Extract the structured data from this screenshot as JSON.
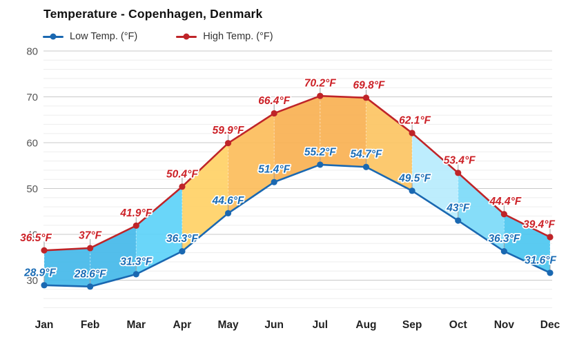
{
  "chart_data": {
    "type": "line",
    "title": "Temperature - Copenhagen, Denmark",
    "categories": [
      "Jan",
      "Feb",
      "Mar",
      "Apr",
      "May",
      "Jun",
      "Jul",
      "Aug",
      "Sep",
      "Oct",
      "Nov",
      "Dec"
    ],
    "series": [
      {
        "name": "Low Temp. (°F)",
        "color": "#1a68b1",
        "label_color": "#1a6cb5",
        "values": [
          28.9,
          28.6,
          31.3,
          36.3,
          44.6,
          51.4,
          55.2,
          54.7,
          49.5,
          43,
          36.3,
          31.6
        ],
        "labels": [
          "28.9°F",
          "28.6°F",
          "31.3°F",
          "36.3°F",
          "44.6°F",
          "51.4°F",
          "55.2°F",
          "54.7°F",
          "49.5°F",
          "43°F",
          "36.3°F",
          "31.6°F"
        ]
      },
      {
        "name": "High Temp. (°F)",
        "color": "#bf2428",
        "label_color": "#cc2127",
        "values": [
          36.5,
          37,
          41.9,
          50.4,
          59.9,
          66.4,
          70.2,
          69.8,
          62.1,
          53.4,
          44.4,
          39.4
        ],
        "labels": [
          "36.5°F",
          "37°F",
          "41.9°F",
          "50.4°F",
          "59.9°F",
          "66.4°F",
          "70.2°F",
          "69.8°F",
          "62.1°F",
          "53.4°F",
          "44.4°F",
          "39.4°F"
        ]
      }
    ],
    "xlabel": "",
    "ylabel": "",
    "ylim": [
      24,
      80
    ],
    "yticks": [
      30,
      40,
      50,
      60,
      70,
      80
    ],
    "grid": true,
    "legend_position": "top-left",
    "band_colors": [
      "#44b8e9",
      "#44b8e9",
      "#5dd3f8",
      "#ffd166",
      "#fcbd5b",
      "#f9b153",
      "#f9b153",
      "#fcc463",
      "#b7ecfd",
      "#7cdaf8",
      "#4cc7f0"
    ],
    "colors": {
      "grid_major": "#c9c9c9",
      "grid_minor": "#ededed",
      "axis_tick_text": "#555555",
      "month_text": "#222222",
      "background": "#ffffff"
    }
  }
}
